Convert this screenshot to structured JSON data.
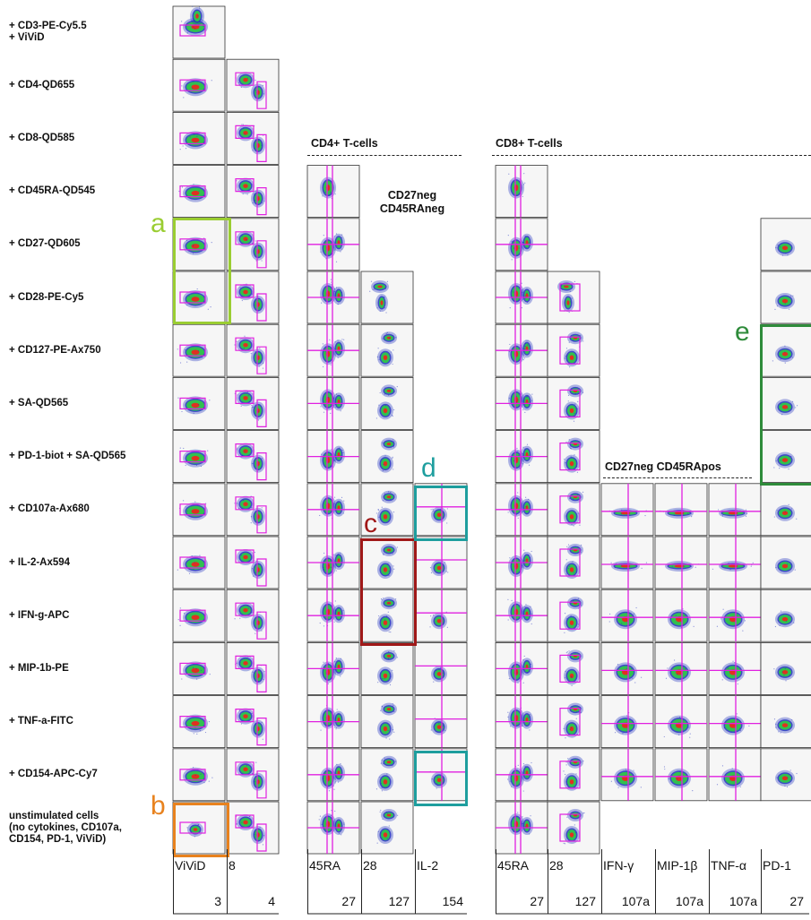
{
  "rows": [
    "+ CD3-PE-Cy5.5\n+ ViViD",
    "+ CD4-QD655",
    "+ CD8-QD585",
    "+ CD45RA-QD545",
    "+ CD27-QD605",
    "+ CD28-PE-Cy5",
    "+ CD127-PE-Ax750",
    "+ SA-QD565",
    "+ PD-1-biot + SA-QD565",
    "+ CD107a-Ax680",
    "+ IL-2-Ax594",
    "+ IFN-g-APC",
    "+ MIP-1b-PE",
    "+ TNF-a-FITC",
    "+ CD154-APC-Cy7",
    "unstimulated cells\n(no cytokines, CD107a,\nCD154, PD-1, ViViD)"
  ],
  "headers": {
    "cd4": "CD4+ T-cells",
    "cd8": "CD8+ T-cells",
    "cd27neg": "CD27neg CD45RApos",
    "annotation": "CD27neg\nCD45RAneg"
  },
  "letters": [
    {
      "text": "a",
      "color": "#9ACD32"
    },
    {
      "text": "b",
      "color": "#E8821E"
    },
    {
      "text": "c",
      "color": "#A01818"
    },
    {
      "text": "d",
      "color": "#1E9E9E"
    },
    {
      "text": "e",
      "color": "#2E8B3A"
    }
  ],
  "axis_labels": [
    {
      "top": "ViViD",
      "bottom": "3"
    },
    {
      "top": "8",
      "bottom": "4"
    },
    {
      "top": "45RA",
      "bottom": "27"
    },
    {
      "top": "28",
      "bottom": "127"
    },
    {
      "top": "IL-2",
      "bottom": "154"
    },
    {
      "top": "45RA",
      "bottom": "27"
    },
    {
      "top": "28",
      "bottom": "127"
    },
    {
      "top": "IFN-γ",
      "bottom": "107a"
    },
    {
      "top": "MIP-1β",
      "bottom": "107a"
    },
    {
      "top": "TNF-α",
      "bottom": "107a"
    },
    {
      "top": "PD-1",
      "bottom": "27"
    }
  ],
  "colors": {
    "gate": "#E020E0",
    "panel_bg": "#F6F6F6",
    "density_low": "#2030C0",
    "density_mid": "#30C050",
    "density_high": "#E03020"
  }
}
